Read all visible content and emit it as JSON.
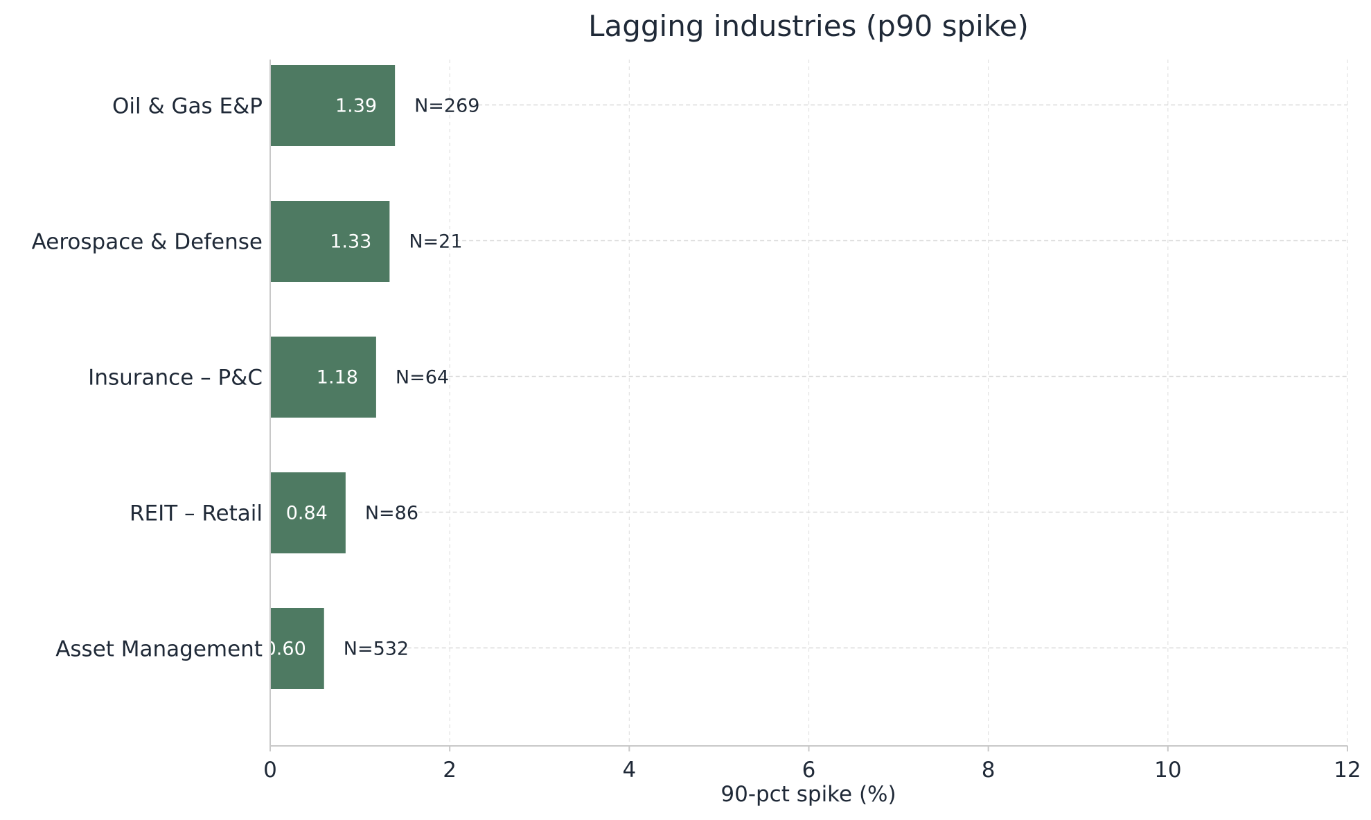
{
  "chart_data": {
    "type": "bar",
    "orientation": "horizontal",
    "title": "Lagging industries (p90 spike)",
    "xlabel": "90-pct spike (%)",
    "ylabel": "",
    "xlim": [
      0,
      12
    ],
    "xticks": [
      0,
      2,
      4,
      6,
      8,
      10,
      12
    ],
    "categories": [
      "Oil & Gas E&P",
      "Aerospace & Defense",
      "Insurance – P&C",
      "REIT – Retail",
      "Asset Management"
    ],
    "values": [
      1.39,
      1.33,
      1.18,
      0.84,
      0.6
    ],
    "value_labels": [
      "1.39",
      "1.33",
      "1.18",
      "0.84",
      "0.60"
    ],
    "count_labels": [
      "N=269",
      "N=21",
      "N=64",
      "N=86",
      "N=532"
    ],
    "grid": true,
    "legend": "none",
    "colors": {
      "bar": "#4e7a62",
      "bar_label": "#ffffff",
      "text": "#1f2937",
      "axis": "#c8c8c8",
      "grid": "#d9d9d9"
    }
  }
}
